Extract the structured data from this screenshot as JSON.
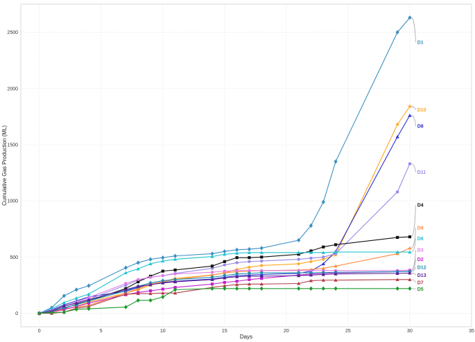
{
  "chart_data": {
    "type": "line",
    "title": "",
    "xlabel": "Days",
    "ylabel": "Cumulative Gas Production (ML)",
    "xlim": [
      -1.5,
      35
    ],
    "ylim": [
      -120,
      2750
    ],
    "xticks": [
      0,
      5,
      10,
      15,
      20,
      25,
      30,
      35
    ],
    "yticks": [
      0,
      500,
      1000,
      1500,
      2000,
      2500
    ],
    "grid": true,
    "legend": "none",
    "series": [
      {
        "name": "D1",
        "color": "#3d8fc3",
        "marker": "diamond",
        "label_y": 2410,
        "x": [
          0,
          1,
          2,
          3,
          4,
          7,
          8,
          9,
          10,
          11,
          14,
          15,
          16,
          17,
          18,
          21,
          22,
          23,
          24,
          29,
          30
        ],
        "y": [
          0,
          50,
          155,
          210,
          245,
          405,
          450,
          480,
          495,
          510,
          530,
          550,
          565,
          570,
          580,
          650,
          780,
          990,
          1350,
          2500,
          2630
        ]
      },
      {
        "name": "D10",
        "color": "#ffa51f",
        "marker": "star",
        "label_y": 1810,
        "x": [
          0,
          1,
          2,
          3,
          4,
          7,
          8,
          9,
          10,
          11,
          14,
          15,
          16,
          17,
          18,
          21,
          22,
          23,
          24,
          29,
          30
        ],
        "y": [
          0,
          10,
          30,
          60,
          100,
          180,
          210,
          250,
          280,
          310,
          340,
          360,
          390,
          410,
          425,
          440,
          460,
          480,
          520,
          1680,
          1840
        ]
      },
      {
        "name": "D8",
        "color": "#2a2ed0",
        "marker": "triangle",
        "label_y": 1665,
        "x": [
          0,
          1,
          2,
          3,
          4,
          7,
          8,
          9,
          10,
          11,
          14,
          15,
          16,
          17,
          18,
          21,
          22,
          23,
          24,
          29,
          30
        ],
        "y": [
          0,
          30,
          75,
          110,
          145,
          195,
          230,
          255,
          275,
          285,
          305,
          320,
          335,
          340,
          345,
          355,
          375,
          440,
          550,
          1570,
          1760
        ]
      },
      {
        "name": "D11",
        "color": "#9988e8",
        "marker": "circle",
        "label_y": 1255,
        "x": [
          0,
          1,
          2,
          3,
          4,
          7,
          8,
          9,
          10,
          11,
          14,
          15,
          16,
          17,
          18,
          21,
          22,
          23,
          24,
          29,
          30
        ],
        "y": [
          0,
          20,
          60,
          95,
          125,
          250,
          295,
          320,
          335,
          355,
          400,
          430,
          450,
          460,
          465,
          480,
          490,
          500,
          530,
          1080,
          1330
        ]
      },
      {
        "name": "D4",
        "color": "#111111",
        "marker": "square",
        "label_y": 965,
        "x": [
          0,
          1,
          2,
          3,
          4,
          7,
          8,
          9,
          10,
          11,
          14,
          15,
          16,
          17,
          18,
          21,
          22,
          23,
          24,
          29,
          30
        ],
        "y": [
          0,
          20,
          45,
          80,
          110,
          220,
          280,
          330,
          375,
          385,
          420,
          460,
          495,
          495,
          500,
          525,
          555,
          590,
          610,
          675,
          680
        ]
      },
      {
        "name": "D9",
        "color": "#ff8a3d",
        "marker": "triangle",
        "label_y": 760,
        "x": [
          0,
          1,
          2,
          3,
          4,
          7,
          8,
          9,
          10,
          11,
          14,
          15,
          16,
          17,
          18,
          21,
          22,
          23,
          24,
          29,
          30
        ],
        "y": [
          0,
          15,
          40,
          55,
          70,
          180,
          220,
          260,
          280,
          300,
          340,
          360,
          370,
          375,
          380,
          385,
          390,
          400,
          420,
          530,
          580
        ]
      },
      {
        "name": "D6",
        "color": "#21c4cf",
        "marker": "triangle",
        "label_y": 665,
        "x": [
          0,
          1,
          2,
          3,
          4,
          7,
          8,
          9,
          10,
          11,
          14,
          15,
          16,
          17,
          18,
          21,
          22,
          23,
          24,
          29,
          30
        ],
        "y": [
          0,
          40,
          95,
          135,
          170,
          360,
          395,
          440,
          465,
          480,
          505,
          525,
          535,
          540,
          540,
          540,
          540,
          540,
          545,
          545,
          545
        ]
      },
      {
        "name": "D3",
        "color": "#e07ae6",
        "marker": "circle",
        "label_y": 565,
        "x": [
          0,
          1,
          2,
          3,
          4,
          7,
          8,
          9,
          10,
          11,
          14,
          15,
          16,
          17,
          18,
          21,
          22,
          23,
          24,
          29,
          30
        ],
        "y": [
          0,
          25,
          60,
          100,
          140,
          265,
          300,
          320,
          335,
          350,
          365,
          375,
          380,
          380,
          380,
          380,
          380,
          380,
          380,
          380,
          385
        ]
      },
      {
        "name": "D2",
        "color": "#c020d0",
        "marker": "square",
        "label_y": 480,
        "x": [
          0,
          1,
          2,
          3,
          4,
          7,
          8,
          9,
          10,
          11,
          14,
          15,
          16,
          17,
          18,
          21,
          22,
          23,
          24,
          29,
          30
        ],
        "y": [
          0,
          10,
          35,
          60,
          90,
          165,
          185,
          200,
          215,
          230,
          260,
          275,
          285,
          300,
          310,
          340,
          350,
          355,
          360,
          370,
          375
        ]
      },
      {
        "name": "D12",
        "color": "#1f8fb0",
        "marker": "diamond",
        "label_y": 410,
        "x": [
          0,
          1,
          2,
          3,
          4,
          7,
          8,
          9,
          10,
          11,
          14,
          15,
          16,
          17,
          18,
          21,
          22,
          23,
          24,
          29,
          30
        ],
        "y": [
          0,
          15,
          50,
          75,
          110,
          200,
          240,
          270,
          290,
          300,
          320,
          335,
          350,
          355,
          360,
          360,
          360,
          362,
          365,
          370,
          372
        ]
      },
      {
        "name": "D13",
        "color": "#5a1f96",
        "marker": "triangle",
        "label_y": 340,
        "x": [
          0,
          1,
          2,
          3,
          4,
          7,
          8,
          9,
          10,
          11,
          14,
          15,
          16,
          17,
          18,
          21,
          22,
          23,
          24,
          29,
          30
        ],
        "y": [
          0,
          20,
          65,
          90,
          120,
          210,
          240,
          255,
          270,
          280,
          300,
          315,
          325,
          330,
          330,
          335,
          340,
          345,
          350,
          355,
          358
        ]
      },
      {
        "name": "D7",
        "color": "#b23a48",
        "marker": "triangle",
        "label_y": 275,
        "x": [
          0,
          1,
          2,
          3,
          4,
          7,
          8,
          9,
          10,
          11,
          14,
          15,
          16,
          17,
          18,
          21,
          22,
          23,
          24,
          29,
          30
        ],
        "y": [
          0,
          0,
          10,
          45,
          60,
          170,
          175,
          175,
          180,
          180,
          230,
          245,
          255,
          260,
          260,
          265,
          290,
          295,
          295,
          300,
          300
        ]
      },
      {
        "name": "D5",
        "color": "#1f9a2c",
        "marker": "diamond",
        "label_y": 215,
        "x": [
          0,
          1,
          2,
          3,
          4,
          7,
          8,
          9,
          10,
          11,
          14,
          15,
          16,
          17,
          18,
          21,
          22,
          23,
          24,
          29,
          30
        ],
        "y": [
          0,
          5,
          10,
          35,
          40,
          55,
          115,
          115,
          145,
          210,
          220,
          220,
          220,
          220,
          220,
          220,
          220,
          220,
          220,
          220,
          220
        ]
      }
    ]
  }
}
